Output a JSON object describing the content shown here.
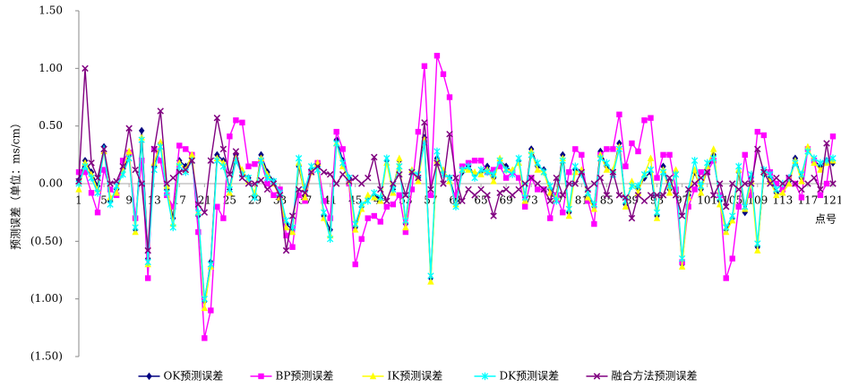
{
  "chart_data": {
    "type": "line",
    "y_axis_label": "预测误差（单位：ms/cm）",
    "x_axis_label": "点号",
    "categories": [
      "1",
      null,
      null,
      null,
      "5",
      null,
      null,
      null,
      "9",
      null,
      null,
      null,
      "13",
      null,
      null,
      null,
      "17",
      null,
      null,
      null,
      "21",
      null,
      null,
      null,
      "25",
      null,
      null,
      null,
      "29",
      null,
      null,
      null,
      "33",
      null,
      null,
      null,
      "37",
      null,
      null,
      null,
      "41",
      null,
      null,
      null,
      "45",
      null,
      null,
      null,
      "49",
      null,
      null,
      null,
      "53",
      null,
      null,
      null,
      "57",
      null,
      null,
      null,
      "61",
      null,
      null,
      null,
      "65",
      null,
      null,
      null,
      "69",
      null,
      null,
      null,
      "73",
      null,
      null,
      null,
      "77",
      null,
      null,
      null,
      "81",
      null,
      null,
      null,
      "85",
      null,
      null,
      null,
      "89",
      null,
      null,
      null,
      "93",
      null,
      null,
      null,
      "97",
      null,
      null,
      null,
      "101",
      null,
      null,
      null,
      "105",
      null,
      null,
      null,
      "109",
      null,
      null,
      null,
      "113",
      null,
      null,
      null,
      "117",
      null,
      null,
      null,
      "121"
    ],
    "ylim": [
      -1.5,
      1.5
    ],
    "yticks": [
      {
        "value": 1.5,
        "label": "1.50"
      },
      {
        "value": 1.0,
        "label": "1.00"
      },
      {
        "value": 0.5,
        "label": "0.50"
      },
      {
        "value": 0,
        "label": "0.00"
      },
      {
        "value": -0.5,
        "label": "(0.50)"
      },
      {
        "value": -1.0,
        "label": "(1.00)"
      },
      {
        "value": -1.5,
        "label": "(1.50)"
      }
    ],
    "negative_tick_color": "#ff0000",
    "grid": false,
    "legend": "bottom",
    "series": [
      {
        "name": "OK预测误差",
        "color": "#000080",
        "marker": "diamond",
        "values": [
          0.03,
          0.2,
          0.1,
          -0.02,
          0.32,
          -0.15,
          -0.05,
          0.1,
          0.25,
          -0.4,
          0.46,
          -0.65,
          0.15,
          0.35,
          -0.05,
          -0.3,
          0.2,
          0.15,
          0.22,
          -0.28,
          -1.02,
          -0.68,
          0.25,
          0.2,
          -0.05,
          0.25,
          0.1,
          0.05,
          -0.1,
          0.25,
          0.1,
          0.02,
          -0.1,
          -0.35,
          -0.4,
          0.15,
          -0.1,
          0.12,
          0.15,
          -0.28,
          -0.4,
          0.38,
          0.2,
          0.05,
          -0.38,
          -0.2,
          -0.12,
          -0.1,
          -0.13,
          0.2,
          -0.05,
          0.2,
          -0.35,
          0.1,
          0.05,
          0.4,
          -0.82,
          0.22,
          0.1,
          0.05,
          -0.15,
          0.1,
          0.15,
          0.08,
          0.1,
          0.15,
          0.05,
          0.2,
          0.15,
          0.1,
          0.2,
          -0.12,
          0.3,
          0.15,
          0.12,
          -0.05,
          -0.1,
          0.25,
          -0.25,
          0.12,
          0.1,
          -0.1,
          -0.2,
          0.28,
          0.15,
          0.1,
          0.35,
          -0.18,
          0.0,
          -0.05,
          0.05,
          0.1,
          -0.28,
          0.15,
          -0.05,
          0.1,
          -0.7,
          -0.1,
          0.1,
          -0.05,
          0.12,
          0.25,
          -0.15,
          -0.4,
          -0.3,
          0.1,
          -0.25,
          0.05,
          -0.55,
          0.08,
          0.05,
          -0.08,
          -0.05,
          0.02,
          0.22,
          0.05,
          0.3,
          0.2,
          0.15,
          0.2,
          0.18
        ]
      },
      {
        "name": "BP预测误差",
        "color": "#ff00ff",
        "marker": "square",
        "values": [
          0.1,
          0.1,
          -0.08,
          -0.25,
          0.12,
          -0.05,
          -0.1,
          0.2,
          0.27,
          -0.3,
          0.2,
          -0.82,
          0.3,
          0.2,
          -0.1,
          -0.2,
          0.33,
          0.3,
          0.25,
          -0.42,
          -1.34,
          -1.1,
          -0.2,
          -0.3,
          0.41,
          0.55,
          0.53,
          0.15,
          0.17,
          0.2,
          0.0,
          -0.1,
          -0.05,
          -0.45,
          -0.55,
          -0.1,
          -0.15,
          0.1,
          0.18,
          -0.15,
          -0.3,
          0.45,
          0.3,
          0.0,
          -0.7,
          -0.48,
          -0.3,
          -0.28,
          -0.33,
          -0.2,
          -0.18,
          -0.1,
          -0.42,
          -0.05,
          0.45,
          1.02,
          -0.1,
          1.11,
          0.95,
          0.75,
          -0.1,
          0.15,
          0.18,
          0.2,
          0.2,
          0.1,
          0.12,
          0.15,
          0.05,
          0.1,
          0.05,
          -0.2,
          0.05,
          -0.05,
          -0.05,
          -0.3,
          -0.1,
          -0.25,
          0.1,
          0.3,
          0.25,
          -0.15,
          -0.35,
          0.25,
          0.3,
          0.3,
          0.6,
          0.15,
          0.35,
          0.28,
          0.55,
          0.57,
          0.05,
          0.25,
          0.25,
          -0.05,
          -0.68,
          -0.2,
          -0.05,
          0.1,
          0.1,
          0.2,
          -0.1,
          -0.82,
          -0.65,
          -0.2,
          0.25,
          -0.1,
          0.45,
          0.42,
          0.1,
          0.0,
          -0.05,
          0.05,
          0.0,
          -0.12,
          0.3,
          0.2,
          -0.1,
          0.0,
          0.41
        ]
      },
      {
        "name": "IK预测误差",
        "color": "#ffff00",
        "marker": "triangle",
        "values": [
          -0.05,
          0.18,
          0.08,
          -0.05,
          0.28,
          -0.12,
          -0.08,
          0.12,
          0.28,
          -0.42,
          0.4,
          -0.7,
          0.18,
          0.36,
          -0.02,
          -0.35,
          0.18,
          0.12,
          0.25,
          -0.25,
          -1.08,
          -0.72,
          0.22,
          0.18,
          -0.08,
          0.22,
          0.12,
          0.02,
          -0.08,
          0.22,
          0.08,
          0.0,
          -0.12,
          -0.38,
          -0.42,
          0.18,
          -0.12,
          0.1,
          0.18,
          -0.3,
          -0.45,
          0.35,
          0.15,
          0.02,
          -0.4,
          -0.22,
          -0.1,
          -0.12,
          -0.15,
          0.18,
          -0.08,
          0.22,
          -0.38,
          0.12,
          0.02,
          0.38,
          -0.85,
          0.2,
          0.12,
          0.02,
          -0.18,
          0.12,
          0.12,
          0.1,
          0.08,
          0.12,
          0.02,
          0.22,
          0.12,
          0.12,
          0.18,
          -0.15,
          0.28,
          0.12,
          0.1,
          -0.08,
          -0.12,
          0.22,
          -0.28,
          0.1,
          0.12,
          -0.12,
          -0.22,
          0.25,
          0.12,
          0.12,
          0.32,
          -0.2,
          0.02,
          -0.08,
          0.08,
          0.22,
          -0.3,
          0.12,
          -0.08,
          0.12,
          -0.72,
          -0.12,
          0.12,
          -0.08,
          0.15,
          0.3,
          -0.18,
          -0.42,
          -0.32,
          0.12,
          -0.22,
          0.02,
          -0.58,
          0.1,
          0.02,
          -0.1,
          -0.08,
          0.0,
          0.2,
          0.02,
          0.32,
          0.18,
          0.12,
          0.18,
          0.2
        ]
      },
      {
        "name": "DK预测误差",
        "color": "#00ffff",
        "marker": "star",
        "values": [
          0.0,
          0.15,
          0.05,
          -0.08,
          0.3,
          -0.18,
          -0.02,
          0.08,
          0.22,
          -0.38,
          0.38,
          -0.68,
          0.12,
          0.32,
          -0.08,
          -0.38,
          0.15,
          0.1,
          0.2,
          -0.25,
          -1.0,
          -0.7,
          0.2,
          0.15,
          -0.05,
          0.2,
          0.08,
          0.05,
          -0.12,
          0.2,
          0.05,
          0.02,
          -0.08,
          -0.32,
          -0.38,
          0.22,
          -0.05,
          0.15,
          0.12,
          -0.25,
          -0.48,
          0.35,
          0.18,
          0.05,
          -0.35,
          -0.18,
          -0.15,
          -0.08,
          -0.12,
          0.22,
          -0.05,
          0.15,
          -0.32,
          0.1,
          0.08,
          0.35,
          -0.8,
          0.28,
          0.08,
          0.05,
          -0.2,
          0.12,
          0.15,
          0.05,
          0.12,
          0.1,
          0.08,
          0.2,
          0.12,
          0.08,
          0.22,
          -0.12,
          0.25,
          0.18,
          0.1,
          -0.02,
          -0.15,
          0.2,
          -0.22,
          0.15,
          0.08,
          -0.08,
          -0.18,
          0.22,
          0.18,
          0.08,
          0.3,
          -0.15,
          -0.02,
          -0.02,
          0.08,
          0.12,
          -0.25,
          0.1,
          -0.02,
          0.08,
          -0.65,
          -0.05,
          0.2,
          -0.02,
          0.18,
          0.22,
          -0.12,
          -0.38,
          -0.28,
          0.15,
          -0.2,
          0.08,
          -0.52,
          0.12,
          0.08,
          -0.05,
          0.0,
          0.05,
          0.18,
          0.08,
          0.28,
          0.22,
          0.18,
          0.2,
          0.22
        ]
      },
      {
        "name": "融合方法预测误差",
        "color": "#800080",
        "marker": "x",
        "values": [
          0.02,
          1.0,
          0.18,
          0.05,
          0.3,
          0.0,
          0.02,
          0.15,
          0.48,
          0.12,
          0.0,
          -0.58,
          0.3,
          0.63,
          0.0,
          0.05,
          0.1,
          0.12,
          0.2,
          -0.18,
          -0.25,
          0.2,
          0.57,
          0.3,
          0.08,
          0.28,
          0.05,
          0.0,
          0.0,
          0.03,
          -0.05,
          0.0,
          -0.1,
          -0.58,
          -0.28,
          -0.05,
          -0.08,
          0.1,
          0.15,
          0.1,
          0.08,
          0.0,
          0.08,
          0.02,
          0.05,
          0.0,
          0.05,
          0.23,
          -0.05,
          -0.15,
          0.0,
          0.08,
          -0.1,
          0.1,
          0.05,
          0.53,
          -0.05,
          0.18,
          0.0,
          0.43,
          0.05,
          -0.15,
          -0.05,
          -0.1,
          -0.05,
          -0.1,
          -0.28,
          -0.08,
          -0.05,
          -0.1,
          -0.05,
          0.0,
          0.05,
          0.0,
          -0.05,
          -0.15,
          0.05,
          -0.1,
          0.0,
          0.0,
          0.1,
          -0.05,
          0.0,
          0.05,
          -0.1,
          0.1,
          -0.1,
          -0.12,
          -0.3,
          -0.1,
          -0.15,
          -0.1,
          -0.1,
          -0.1,
          0.05,
          -0.1,
          -0.28,
          -0.05,
          0.0,
          0.05,
          0.1,
          -0.1,
          0.0,
          -0.2,
          0.0,
          -0.05,
          0.0,
          0.0,
          0.3,
          0.1,
          0.0,
          0.05,
          0.0,
          0.05,
          0.0,
          -0.05,
          0.0,
          0.05,
          -0.05,
          0.35,
          0.0
        ]
      }
    ]
  }
}
